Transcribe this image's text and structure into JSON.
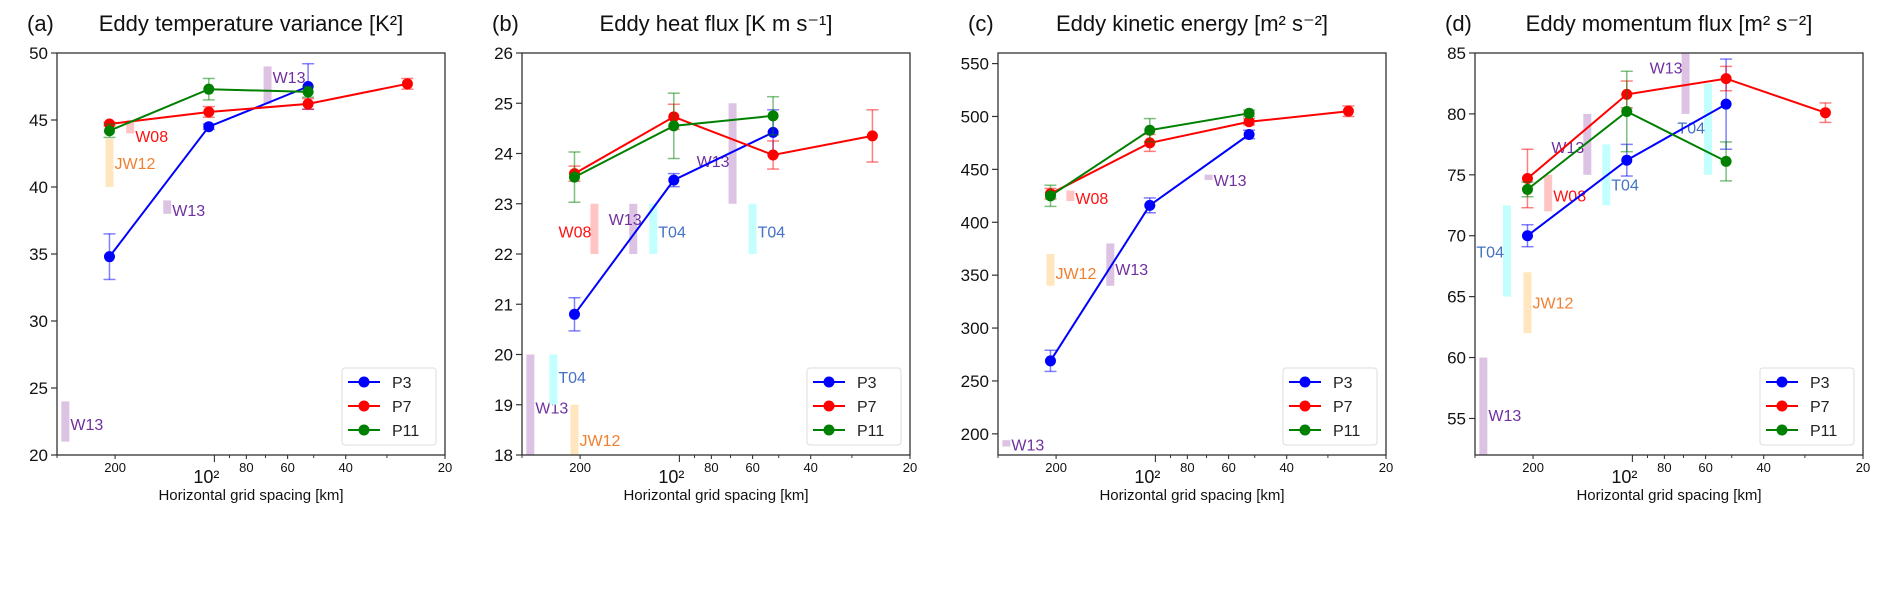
{
  "reference_colors": {
    "W13": {
      "bar": "#dcc3e3",
      "text": "#7030a0"
    },
    "W08": {
      "bar": "#ffc4c4",
      "text": "#ff1010"
    },
    "JW12": {
      "bar": "#ffe6bf",
      "text": "#f08030"
    },
    "T04": {
      "bar": "#c4ffff",
      "text": "#4472c4"
    }
  },
  "chart_data": [
    {
      "type": "line",
      "panel": "(a)",
      "title": "Eddy temperature variance [K²]",
      "xlabel": "Horizontal grid spacing [km]",
      "xscale": "log",
      "xlim": [
        300,
        20
      ],
      "ylim": [
        20,
        50
      ],
      "yticks": [
        "20",
        "25",
        "30",
        "35",
        "40",
        "45",
        "50"
      ],
      "xticks": [
        {
          "value": 200,
          "label": "200"
        },
        {
          "value": 100,
          "label": "10²"
        },
        {
          "value": 80,
          "label": "80"
        },
        {
          "value": 60,
          "label": "60"
        },
        {
          "value": 40,
          "label": "40"
        },
        {
          "value": 20,
          "label": "20"
        }
      ],
      "grid": false,
      "legend": "lower-right",
      "series": [
        {
          "name": "P3",
          "color": "#0000ff",
          "x": [
            208,
            104,
            52
          ],
          "y": [
            34.8,
            44.5,
            47.5
          ],
          "err": [
            1.7,
            0.2,
            1.7
          ]
        },
        {
          "name": "P7",
          "color": "#ff0000",
          "x": [
            208,
            104,
            52,
            26
          ],
          "y": [
            44.7,
            45.6,
            46.2,
            47.7
          ],
          "err": [
            0.15,
            0.4,
            0.4,
            0.4
          ]
        },
        {
          "name": "P11",
          "color": "#008000",
          "x": [
            208,
            104,
            52
          ],
          "y": [
            44.2,
            47.3,
            47.1
          ],
          "err": [
            0.5,
            0.8,
            0.4
          ]
        }
      ],
      "references": [
        {
          "label": "W13",
          "x": 283,
          "y_range": [
            21,
            24
          ],
          "label_y": 22.3,
          "label_side": "right"
        },
        {
          "label": "JW12",
          "x": 208,
          "y_range": [
            40,
            43.6
          ],
          "label_y": 41.8,
          "label_side": "right"
        },
        {
          "label": "W08",
          "x": 180,
          "y_range": [
            44,
            45
          ],
          "label_y": 43.8,
          "label_side": "right"
        },
        {
          "label": "W13",
          "x": 139,
          "y_range": [
            38,
            39
          ],
          "label_y": 38.3,
          "label_side": "right"
        },
        {
          "label": "W13",
          "x": 69,
          "y_range": [
            46.2,
            49
          ],
          "label_y": 48.2,
          "label_side": "right"
        }
      ]
    },
    {
      "type": "line",
      "panel": "(b)",
      "title": "Eddy heat flux [K m s⁻¹]",
      "xlabel": "Horizontal grid spacing [km]",
      "xscale": "log",
      "xlim": [
        300,
        20
      ],
      "ylim": [
        18,
        26
      ],
      "yticks": [
        "18",
        "19",
        "20",
        "21",
        "22",
        "23",
        "24",
        "25",
        "26"
      ],
      "xticks": [
        {
          "value": 200,
          "label": "200"
        },
        {
          "value": 100,
          "label": "10²"
        },
        {
          "value": 80,
          "label": "80"
        },
        {
          "value": 60,
          "label": "60"
        },
        {
          "value": 40,
          "label": "40"
        },
        {
          "value": 20,
          "label": "20"
        }
      ],
      "grid": false,
      "legend": "lower-right",
      "series": [
        {
          "name": "P3",
          "color": "#0000ff",
          "x": [
            208,
            104,
            52
          ],
          "y": [
            20.8,
            23.47,
            24.42
          ],
          "err": [
            0.33,
            0.13,
            0.45
          ]
        },
        {
          "name": "P7",
          "color": "#ff0000",
          "x": [
            208,
            104,
            52,
            26
          ],
          "y": [
            23.6,
            24.73,
            23.97,
            24.35
          ],
          "err": [
            0.15,
            0.25,
            0.28,
            0.52
          ]
        },
        {
          "name": "P11",
          "color": "#008000",
          "x": [
            208,
            104,
            52
          ],
          "y": [
            23.53,
            24.55,
            24.75
          ],
          "err": [
            0.5,
            0.65,
            0.38
          ]
        }
      ],
      "references": [
        {
          "label": "W13",
          "x": 283,
          "y_range": [
            18,
            20
          ],
          "label_y": 18.95,
          "label_side": "right"
        },
        {
          "label": "T04",
          "x": 241,
          "y_range": [
            19,
            20
          ],
          "label_y": 19.55,
          "label_side": "right"
        },
        {
          "label": "JW12",
          "x": 208,
          "y_range": [
            18,
            19
          ],
          "label_y": 18.3,
          "label_side": "right"
        },
        {
          "label": "W08",
          "x": 181,
          "y_range": [
            22,
            23
          ],
          "label_y": 22.45,
          "label_side": "left"
        },
        {
          "label": "W13",
          "x": 138,
          "y_range": [
            22,
            23
          ],
          "label_y": 22.7,
          "label_side": "center"
        },
        {
          "label": "T04",
          "x": 120,
          "y_range": [
            22,
            23
          ],
          "label_y": 22.45,
          "label_side": "right"
        },
        {
          "label": "W13",
          "x": 69,
          "y_range": [
            23,
            25
          ],
          "label_y": 23.85,
          "label_side": "left"
        },
        {
          "label": "T04",
          "x": 60,
          "y_range": [
            22,
            23
          ],
          "label_y": 22.45,
          "label_side": "right"
        }
      ]
    },
    {
      "type": "line",
      "panel": "(c)",
      "title": "Eddy kinetic energy [m² s⁻²]",
      "xlabel": "Horizontal grid spacing [km]",
      "xscale": "log",
      "xlim": [
        300,
        20
      ],
      "ylim": [
        180,
        560
      ],
      "yticks": [
        "200",
        "250",
        "300",
        "350",
        "400",
        "450",
        "500",
        "550"
      ],
      "xticks": [
        {
          "value": 200,
          "label": "200"
        },
        {
          "value": 100,
          "label": "10²"
        },
        {
          "value": 80,
          "label": "80"
        },
        {
          "value": 60,
          "label": "60"
        },
        {
          "value": 40,
          "label": "40"
        },
        {
          "value": 20,
          "label": "20"
        }
      ],
      "grid": false,
      "legend": "lower-right",
      "series": [
        {
          "name": "P3",
          "color": "#0000ff",
          "x": [
            208,
            104,
            52
          ],
          "y": [
            269,
            416,
            483
          ],
          "err": [
            10,
            7,
            4
          ]
        },
        {
          "name": "P7",
          "color": "#ff0000",
          "x": [
            208,
            104,
            52,
            26
          ],
          "y": [
            427,
            475,
            495,
            505
          ],
          "err": [
            5,
            8,
            3,
            5
          ]
        },
        {
          "name": "P11",
          "color": "#008000",
          "x": [
            208,
            104,
            52
          ],
          "y": [
            425,
            487,
            503
          ],
          "err": [
            10,
            11,
            3
          ]
        }
      ],
      "references": [
        {
          "label": "W13",
          "x": 283,
          "y_range": [
            188,
            194
          ],
          "label_y": 190,
          "label_side": "right"
        },
        {
          "label": "JW12",
          "x": 208,
          "y_range": [
            340,
            370
          ],
          "label_y": 352,
          "label_side": "right"
        },
        {
          "label": "W08",
          "x": 181,
          "y_range": [
            420,
            430
          ],
          "label_y": 423,
          "label_side": "right"
        },
        {
          "label": "W13",
          "x": 137,
          "y_range": [
            340,
            380
          ],
          "label_y": 356,
          "label_side": "right"
        },
        {
          "label": "W13",
          "x": 69,
          "y_range": [
            440,
            445
          ],
          "label_y": 440,
          "label_side": "right"
        }
      ]
    },
    {
      "type": "line",
      "panel": "(d)",
      "title": "Eddy momentum flux [m² s⁻²]",
      "xlabel": "Horizontal grid spacing [km]",
      "xscale": "log",
      "xlim": [
        300,
        20
      ],
      "ylim": [
        52,
        85
      ],
      "yticks": [
        "55",
        "60",
        "65",
        "70",
        "75",
        "80",
        "85"
      ],
      "xticks": [
        {
          "value": 200,
          "label": "200"
        },
        {
          "value": 100,
          "label": "10²"
        },
        {
          "value": 80,
          "label": "80"
        },
        {
          "value": 60,
          "label": "60"
        },
        {
          "value": 40,
          "label": "40"
        },
        {
          "value": 20,
          "label": "20"
        }
      ],
      "grid": false,
      "legend": "lower-right",
      "series": [
        {
          "name": "P3",
          "color": "#0000ff",
          "x": [
            208,
            104,
            52
          ],
          "y": [
            70,
            76.2,
            80.8
          ],
          "err": [
            0.9,
            1.3,
            3.7
          ]
        },
        {
          "name": "P7",
          "color": "#ff0000",
          "x": [
            208,
            104,
            52,
            26
          ],
          "y": [
            74.7,
            81.6,
            82.9,
            80.1
          ],
          "err": [
            2.4,
            1.1,
            1.0,
            0.8
          ]
        },
        {
          "name": "P11",
          "color": "#008000",
          "x": [
            208,
            104,
            52
          ],
          "y": [
            73.8,
            80.2,
            76.1
          ],
          "err": [
            0.6,
            3.3,
            1.6
          ]
        }
      ],
      "references": [
        {
          "label": "W13",
          "x": 283,
          "y_range": [
            52,
            60
          ],
          "label_y": 55.3,
          "label_side": "right"
        },
        {
          "label": "T04",
          "x": 240,
          "y_range": [
            65,
            72.5
          ],
          "label_y": 68.7,
          "label_side": "left"
        },
        {
          "label": "JW12",
          "x": 208,
          "y_range": [
            62,
            67
          ],
          "label_y": 64.5,
          "label_side": "right"
        },
        {
          "label": "W08",
          "x": 180,
          "y_range": [
            72,
            75
          ],
          "label_y": 73.3,
          "label_side": "right"
        },
        {
          "label": "W13",
          "x": 137,
          "y_range": [
            75,
            80
          ],
          "label_y": 77.3,
          "label_side": "left"
        },
        {
          "label": "T04",
          "x": 120,
          "y_range": [
            72.5,
            77.5
          ],
          "label_y": 74.2,
          "label_side": "right"
        },
        {
          "label": "W13",
          "x": 69,
          "y_range": [
            80,
            85
          ],
          "label_y": 83.8,
          "label_side": "left"
        },
        {
          "label": "T04",
          "x": 59,
          "y_range": [
            75,
            82.5
          ],
          "label_y": 78.9,
          "label_side": "left"
        }
      ]
    }
  ]
}
